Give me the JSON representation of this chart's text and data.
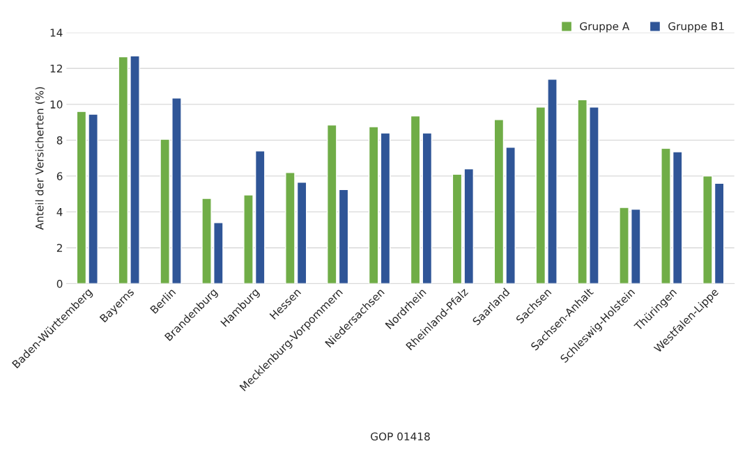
{
  "chart_data": {
    "type": "bar",
    "xlabel": "GOP 01418",
    "ylabel": "Anteil der Versicherten (%)",
    "categories": [
      "Baden-Württemberg",
      "Bayerns",
      "Berlin",
      "Brandenburg",
      "Hamburg",
      "Hessen",
      "Mecklenburg-Vorpommern",
      "Niedersachsen",
      "Nordrhein",
      "Rheinland-Pfalz",
      "Saarland",
      "Sachsen",
      "Sachsen-Anhalt",
      "Schleswig-Holstein",
      "Thüringen",
      "Westfalen-Lippe"
    ],
    "series": [
      {
        "name": "Gruppe A",
        "color": "#70ad47",
        "values": [
          9.6,
          12.65,
          8.05,
          4.75,
          4.95,
          6.2,
          8.85,
          8.75,
          9.35,
          6.1,
          9.15,
          9.85,
          10.25,
          4.25,
          7.55,
          6.0
        ]
      },
      {
        "name": "Gruppe B1",
        "color": "#2f5597",
        "values": [
          9.45,
          12.7,
          10.35,
          3.4,
          7.4,
          5.65,
          5.25,
          8.4,
          8.4,
          6.4,
          7.6,
          11.4,
          9.85,
          4.15,
          7.35,
          5.6
        ]
      }
    ],
    "ylim": [
      0,
      14
    ],
    "yticks": [
      0,
      2,
      4,
      6,
      8,
      10,
      12,
      14
    ],
    "grid": "y",
    "legend": "top right"
  }
}
